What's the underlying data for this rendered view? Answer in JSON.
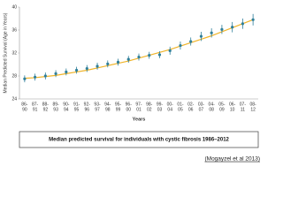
{
  "chart_data": {
    "type": "errorbar",
    "y_label": "Median Predicted Survival (Age in Years)",
    "x_label": "Years",
    "caption": "Median predicted survival for individuals with cystic fibrosis 1986–2012",
    "source": "(Mogayzel et al 2013)",
    "categories": [
      [
        "86-",
        "90"
      ],
      [
        "87-",
        "91"
      ],
      [
        "88-",
        "92"
      ],
      [
        "89-",
        "93"
      ],
      [
        "90-",
        "94"
      ],
      [
        "91-",
        "95"
      ],
      [
        "92-",
        "96"
      ],
      [
        "93-",
        "97"
      ],
      [
        "94-",
        "98"
      ],
      [
        "95-",
        "99"
      ],
      [
        "96-",
        "00"
      ],
      [
        "97-",
        "01"
      ],
      [
        "98-",
        "02"
      ],
      [
        "99-",
        "03"
      ],
      [
        "00-",
        "04"
      ],
      [
        "01-",
        "05"
      ],
      [
        "02-",
        "06"
      ],
      [
        "03-",
        "07"
      ],
      [
        "04-",
        "08"
      ],
      [
        "05-",
        "09"
      ],
      [
        "06-",
        "10"
      ],
      [
        "07-",
        "11"
      ],
      [
        "08-",
        "12"
      ]
    ],
    "series": [
      {
        "color": "#2f7f9a",
        "values": [
          27.5,
          27.8,
          28.0,
          28.4,
          28.7,
          29.0,
          29.3,
          29.7,
          30.1,
          30.4,
          30.9,
          31.3,
          31.6,
          31.7,
          32.4,
          33.3,
          34.0,
          34.9,
          35.5,
          36.1,
          36.5,
          37.1,
          37.8
        ],
        "errors": [
          0.6,
          0.6,
          0.6,
          0.6,
          0.6,
          0.6,
          0.6,
          0.6,
          0.6,
          0.6,
          0.6,
          0.6,
          0.6,
          0.6,
          0.7,
          0.7,
          0.7,
          0.8,
          0.8,
          0.8,
          0.9,
          0.9,
          1.0
        ]
      },
      {
        "color": "#f0b429",
        "values": [
          27.6,
          27.7,
          27.9,
          28.1,
          28.4,
          28.7,
          29.0,
          29.4,
          29.8,
          30.2,
          30.6,
          31.1,
          31.6,
          32.1,
          32.6,
          33.2,
          33.8,
          34.4,
          35.0,
          35.7,
          36.4,
          37.1,
          37.8
        ]
      }
    ],
    "ylim": [
      24,
      40
    ],
    "yticks": [
      24,
      28,
      32,
      36,
      40
    ],
    "grid": false
  }
}
